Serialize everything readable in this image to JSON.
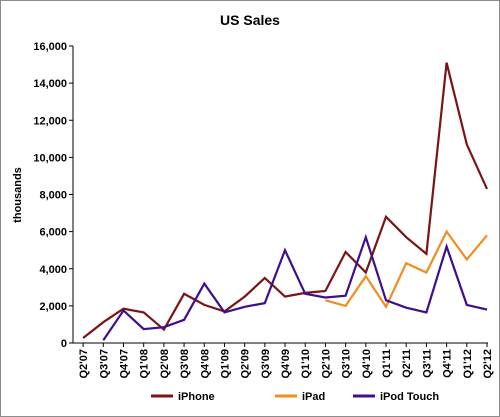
{
  "chart_data": {
    "type": "line",
    "title": "US Sales",
    "xlabel": "",
    "ylabel": "thousands",
    "ylim": [
      0,
      16000
    ],
    "yticks": [
      0,
      2000,
      4000,
      6000,
      8000,
      10000,
      12000,
      14000,
      16000
    ],
    "ytick_labels": [
      "0",
      "2,000",
      "4,000",
      "6,000",
      "8,000",
      "10,000",
      "12,000",
      "14,000",
      "16,000"
    ],
    "categories": [
      "Q2'07",
      "Q3'07",
      "Q4'07",
      "Q1'08",
      "Q2'08",
      "Q3'08",
      "Q4'08",
      "Q1'09",
      "Q2'09",
      "Q3'09",
      "Q4'09",
      "Q1'10",
      "Q2'10",
      "Q3'10",
      "Q4'10",
      "Q1'11",
      "Q2'11",
      "Q3'11",
      "Q4'11",
      "Q1'12",
      "Q2'12"
    ],
    "grid": false,
    "legend_position": "bottom",
    "series": [
      {
        "name": "iPhone",
        "color": "#7b1416",
        "values": [
          270,
          1120,
          1850,
          1650,
          720,
          2650,
          2050,
          1700,
          2500,
          3500,
          2500,
          2700,
          2800,
          4900,
          3800,
          6800,
          5700,
          4800,
          15100,
          10700,
          8300
        ]
      },
      {
        "name": "iPad",
        "color": "#f28c1e",
        "values": [
          null,
          null,
          null,
          null,
          null,
          null,
          null,
          null,
          null,
          null,
          null,
          null,
          2300,
          2000,
          3600,
          1950,
          4300,
          3800,
          6000,
          4500,
          5800
        ]
      },
      {
        "name": "iPod Touch",
        "color": "#3d0f8c",
        "values": [
          null,
          150,
          1750,
          750,
          850,
          1250,
          3200,
          1650,
          1950,
          2150,
          5000,
          2650,
          2450,
          2550,
          5700,
          2300,
          1900,
          1650,
          5200,
          2050,
          1800
        ]
      }
    ]
  }
}
